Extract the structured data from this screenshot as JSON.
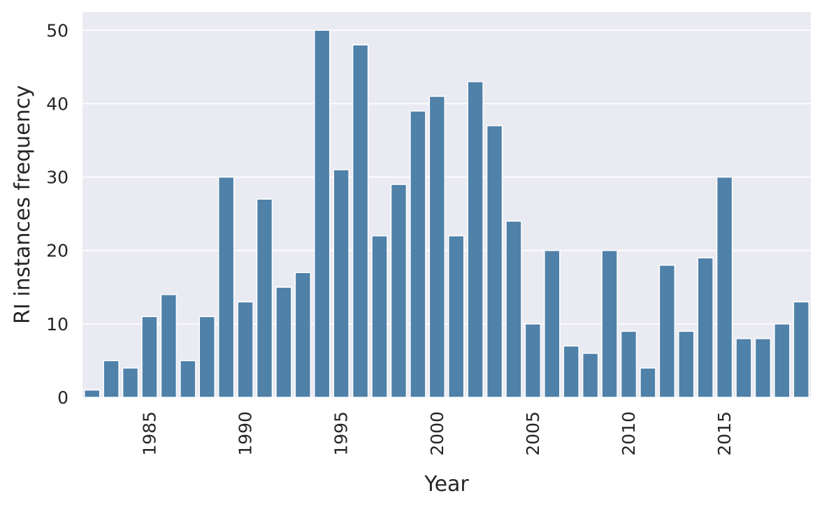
{
  "chart_data": {
    "type": "bar",
    "xlabel": "Year",
    "ylabel": "RI instances frequency",
    "categories": [
      1982,
      1983,
      1984,
      1985,
      1986,
      1987,
      1988,
      1989,
      1990,
      1991,
      1992,
      1993,
      1994,
      1995,
      1996,
      1997,
      1998,
      1999,
      2000,
      2001,
      2002,
      2003,
      2004,
      2005,
      2006,
      2007,
      2008,
      2009,
      2010,
      2011,
      2012,
      2013,
      2014,
      2015,
      2016,
      2017,
      2018,
      2019
    ],
    "values": [
      1,
      5,
      4,
      11,
      14,
      5,
      11,
      30,
      13,
      27,
      15,
      17,
      50,
      31,
      48,
      22,
      29,
      39,
      41,
      22,
      43,
      37,
      24,
      10,
      20,
      7,
      6,
      20,
      9,
      4,
      18,
      9,
      19,
      30,
      8,
      8,
      10,
      13
    ],
    "x_tick_labels": [
      "1985",
      "1990",
      "1995",
      "2000",
      "2005",
      "2010",
      "2015"
    ],
    "y_tick_labels": [
      "0",
      "10",
      "20",
      "30",
      "40",
      "50"
    ],
    "ylim": [
      0,
      52.5
    ],
    "grid": "horizontal",
    "background": "#eaeaf2",
    "bar_color": "#4f81a9"
  }
}
